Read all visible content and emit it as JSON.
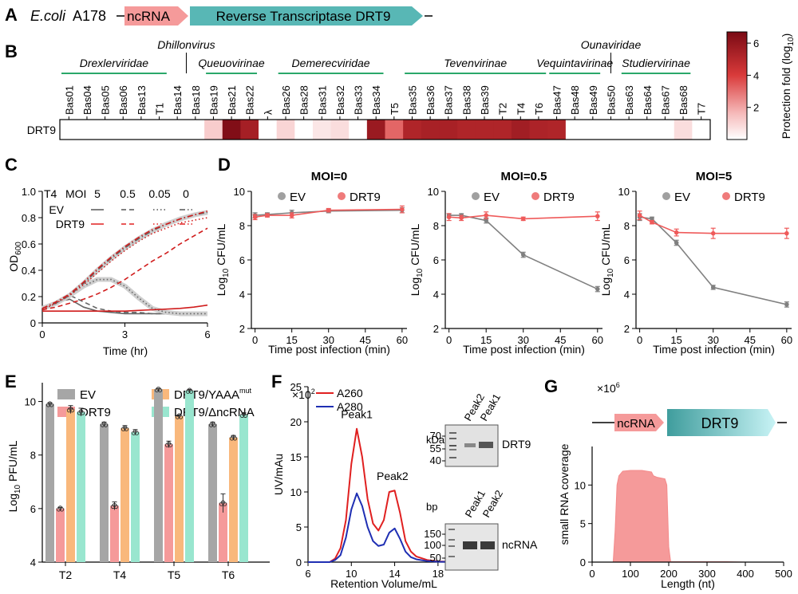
{
  "panels": {
    "a": "A",
    "b": "B",
    "c": "C",
    "d": "D",
    "e": "E",
    "f": "F",
    "g": "G"
  },
  "colors": {
    "ev": "#8c8c8c",
    "drt9": "#e05252",
    "drt9_light": "#ef7b7b",
    "pink": "#f59a9a",
    "orange": "#f9b87c",
    "mint": "#99e6cf",
    "teal": "#58b7b5",
    "green": "#2aa76a",
    "blue": "#1f2fb3",
    "red": "#e02020",
    "heat_dark": "#7a0a14"
  },
  "panel_a": {
    "organism": "E.coli",
    "strain": "A178",
    "ncrna": "ncRNA",
    "rt": "Reverse Transcriptase DRT9"
  },
  "chart_data": [
    {
      "id": "B",
      "type": "heatmap",
      "row_label": "DRT9",
      "colorbar_label": "Protection fold (log10)",
      "colorbar_ticks": [
        "6",
        "4",
        "2"
      ],
      "colorbar_range": [
        0,
        6.7
      ],
      "families": [
        {
          "name": "Drexlerviridae",
          "from": 0,
          "to": 5
        },
        {
          "name": "Dhillonvirus",
          "from": 6,
          "to": 7
        },
        {
          "name": "Queuovirinae",
          "from": 8,
          "to": 10
        },
        {
          "name": "Demerecviridae",
          "from": 12,
          "to": 17
        },
        {
          "name": "Tevenvirinae",
          "from": 19,
          "to": 26
        },
        {
          "name": "Vequintavirinae",
          "from": 27,
          "to": 29
        },
        {
          "name": "Ounaviridae",
          "from": 30,
          "to": 30
        },
        {
          "name": "Studiervirinae",
          "from": 31,
          "to": 34
        }
      ],
      "phages": [
        "Bas01",
        "Bas04",
        "Bas05",
        "Bas06",
        "Bas13",
        "T1",
        "Bas14",
        "Bas18",
        "Bas19",
        "Bas21",
        "Bas22",
        "λ",
        "Bas26",
        "Bas28",
        "Bas31",
        "Bas32",
        "Bas33",
        "Bas34",
        "T5",
        "Bas35",
        "Bas36",
        "Bas37",
        "Bas38",
        "Bas39",
        "T2",
        "T4",
        "T6",
        "Bas47",
        "Bas48",
        "Bas49",
        "Bas50",
        "Bas63",
        "Bas64",
        "Bas67",
        "Bas68",
        "T7"
      ],
      "values": [
        0,
        0,
        0,
        0,
        0,
        0,
        0,
        0,
        1.2,
        6.5,
        5.5,
        0,
        1.0,
        0,
        0.6,
        0.8,
        0,
        5.8,
        3.2,
        5.2,
        5.4,
        5.4,
        5.2,
        5.2,
        5.2,
        5.6,
        5.3,
        5.2,
        0,
        0,
        0,
        0,
        0,
        0,
        0.8,
        0
      ]
    },
    {
      "id": "C",
      "type": "line",
      "strain": "T4",
      "moi_label": "MOI",
      "mois": [
        "5",
        "0.5",
        "0.05",
        "0"
      ],
      "row_labels": [
        "EV",
        "DRT9"
      ],
      "xlabel": "Time (hr)",
      "ylabel_main": "OD",
      "ylabel_sub": "600",
      "xlim": [
        0,
        6
      ],
      "ylim": [
        0,
        1.0
      ],
      "xticks": [
        "0",
        "3",
        "6"
      ],
      "yticks": [
        "0",
        "0.2",
        "0.4",
        "0.6",
        "0.8",
        "1.0"
      ],
      "x": [
        0,
        0.5,
        1,
        1.5,
        2,
        2.5,
        3,
        3.5,
        4,
        4.5,
        5,
        5.5,
        6
      ],
      "series": [
        {
          "name": "EV MOI 5",
          "group": "EV",
          "dash": "solid",
          "values": [
            0.11,
            0.16,
            0.18,
            0.12,
            0.09,
            0.08,
            0.07,
            0.07,
            0.07,
            0.07,
            0.07,
            0.07,
            0.07
          ]
        },
        {
          "name": "EV MOI 0.5",
          "group": "EV",
          "dash": "dash",
          "values": [
            0.11,
            0.16,
            0.21,
            0.16,
            0.11,
            0.09,
            0.08,
            0.08,
            0.07,
            0.07,
            0.07,
            0.07,
            0.07
          ]
        },
        {
          "name": "EV MOI 0.05",
          "group": "EV",
          "dash": "dot",
          "values": [
            0.11,
            0.15,
            0.21,
            0.28,
            0.33,
            0.33,
            0.28,
            0.19,
            0.11,
            0.08,
            0.07,
            0.07,
            0.07
          ]
        },
        {
          "name": "EV MOI 0",
          "group": "EV",
          "dash": "dashdot",
          "values": [
            0.11,
            0.15,
            0.21,
            0.3,
            0.4,
            0.49,
            0.57,
            0.64,
            0.7,
            0.75,
            0.79,
            0.82,
            0.84
          ]
        },
        {
          "name": "DRT9 MOI 5",
          "group": "DRT9",
          "dash": "solid",
          "values": [
            0.09,
            0.09,
            0.09,
            0.09,
            0.09,
            0.09,
            0.09,
            0.095,
            0.1,
            0.105,
            0.11,
            0.12,
            0.135
          ]
        },
        {
          "name": "DRT9 MOI 0.5",
          "group": "DRT9",
          "dash": "dash",
          "values": [
            0.1,
            0.12,
            0.15,
            0.18,
            0.22,
            0.27,
            0.33,
            0.4,
            0.47,
            0.53,
            0.6,
            0.66,
            0.72
          ]
        },
        {
          "name": "DRT9 MOI 0.05",
          "group": "DRT9",
          "dash": "dot",
          "values": [
            0.1,
            0.15,
            0.21,
            0.29,
            0.38,
            0.47,
            0.55,
            0.62,
            0.68,
            0.72,
            0.76,
            0.78,
            0.8
          ]
        },
        {
          "name": "DRT9 MOI 0",
          "group": "DRT9",
          "dash": "dashdot",
          "values": [
            0.11,
            0.16,
            0.22,
            0.31,
            0.41,
            0.5,
            0.58,
            0.65,
            0.71,
            0.75,
            0.79,
            0.82,
            0.85
          ]
        }
      ]
    },
    {
      "id": "D1",
      "type": "line",
      "title": "MOI=0",
      "xlabel": "Time post infection (min)",
      "ylabel_main": "Log",
      "ylabel_sub": "10",
      "ylabel_rest": " CFU/mL",
      "xlim": [
        -1.5,
        62
      ],
      "ylim": [
        2,
        10
      ],
      "xticks": [
        "0",
        "15",
        "30",
        "45",
        "60"
      ],
      "yticks": [
        "2",
        "4",
        "6",
        "8",
        "10"
      ],
      "x": [
        0,
        5,
        15,
        30,
        60
      ],
      "legend": [
        "EV",
        "DRT9"
      ],
      "series": [
        {
          "name": "EV",
          "values": [
            8.6,
            8.65,
            8.75,
            8.85,
            8.9
          ],
          "err": [
            0.15,
            0.1,
            0.15,
            0.1,
            0.15
          ]
        },
        {
          "name": "DRT9",
          "values": [
            8.5,
            8.6,
            8.6,
            8.9,
            8.95
          ],
          "err": [
            0.15,
            0.1,
            0.15,
            0.1,
            0.2
          ]
        }
      ]
    },
    {
      "id": "D2",
      "type": "line",
      "title": "MOI=0.5",
      "xlabel": "Time post infection (min)",
      "ylabel_main": "Log",
      "ylabel_sub": "10",
      "ylabel_rest": " CFU/mL",
      "xlim": [
        -1.5,
        62
      ],
      "ylim": [
        2,
        10
      ],
      "xticks": [
        "0",
        "15",
        "30",
        "45",
        "60"
      ],
      "yticks": [
        "2",
        "4",
        "6",
        "8",
        "10"
      ],
      "x": [
        0,
        5,
        15,
        30,
        60
      ],
      "legend": [
        "EV",
        "DRT9"
      ],
      "series": [
        {
          "name": "EV",
          "values": [
            8.6,
            8.6,
            8.3,
            6.3,
            4.3
          ],
          "err": [
            0.1,
            0.1,
            0.15,
            0.15,
            0.15
          ]
        },
        {
          "name": "DRT9",
          "values": [
            8.5,
            8.45,
            8.6,
            8.4,
            8.55
          ],
          "err": [
            0.2,
            0.15,
            0.2,
            0.1,
            0.25
          ]
        }
      ]
    },
    {
      "id": "D3",
      "type": "line",
      "title": "MOI=5",
      "xlabel": "Time post infection (min)",
      "ylabel_main": "Log",
      "ylabel_sub": "10",
      "ylabel_rest": " CFU/mL",
      "xlim": [
        -1.5,
        62
      ],
      "ylim": [
        2,
        10
      ],
      "xticks": [
        "0",
        "15",
        "30",
        "45",
        "60"
      ],
      "yticks": [
        "2",
        "4",
        "6",
        "8",
        "10"
      ],
      "x": [
        0,
        5,
        15,
        30,
        60
      ],
      "legend": [
        "EV",
        "DRT9"
      ],
      "series": [
        {
          "name": "EV",
          "values": [
            8.5,
            8.4,
            7.0,
            4.4,
            3.4
          ],
          "err": [
            0.2,
            0.1,
            0.15,
            0.12,
            0.15
          ]
        },
        {
          "name": "DRT9",
          "values": [
            8.6,
            8.2,
            7.6,
            7.55,
            7.55
          ],
          "err": [
            0.25,
            0.1,
            0.2,
            0.3,
            0.3
          ]
        }
      ]
    },
    {
      "id": "E",
      "type": "bar",
      "ylabel_main": "Log",
      "ylabel_sub": "10",
      "ylabel_rest": " PFU/mL",
      "ylim": [
        4,
        11
      ],
      "yticks": [
        "4",
        "6",
        "8",
        "10"
      ],
      "categories": [
        "T2",
        "T4",
        "T5",
        "T6"
      ],
      "legend_extra": {
        "yaaa_sup": "mut"
      },
      "series": [
        {
          "name": "EV",
          "values": [
            9.9,
            9.15,
            10.45,
            9.15
          ],
          "err": [
            0.05,
            0.08,
            0.04,
            0.08
          ]
        },
        {
          "name": "DRT9",
          "values": [
            6.0,
            6.1,
            8.4,
            6.2
          ],
          "err": [
            0.05,
            0.15,
            0.12,
            0.35
          ]
        },
        {
          "name": "DRT9/YAAA",
          "values": [
            9.7,
            9.0,
            9.45,
            8.65
          ],
          "err": [
            0.15,
            0.1,
            0.05,
            0.08
          ]
        },
        {
          "name": "DRT9/ΔncRNA",
          "values": [
            9.6,
            8.85,
            10.4,
            9.5
          ],
          "err": [
            0.15,
            0.1,
            0.05,
            0.08
          ]
        }
      ]
    },
    {
      "id": "F",
      "type": "line",
      "multiplier": "×10",
      "multiplier_exp": "2",
      "ylabel": "UV/mAu",
      "xlabel": "Retention Volume/mL",
      "xlim": [
        6,
        20
      ],
      "ylim": [
        0,
        25
      ],
      "xticks": [
        "6",
        "10",
        "14",
        "18"
      ],
      "yticks": [
        "0",
        "5",
        "10",
        "15",
        "20",
        "25"
      ],
      "peak_labels": [
        "Peak1",
        "Peak2"
      ],
      "x": [
        6,
        7,
        8,
        8.5,
        9,
        9.5,
        10,
        10.5,
        11,
        11.5,
        12,
        12.5,
        13,
        13.5,
        14,
        14.5,
        15,
        15.5,
        16,
        17,
        18,
        20
      ],
      "series": [
        {
          "name": "A260",
          "values": [
            0,
            0,
            0,
            0.5,
            2,
            6,
            14,
            19,
            15,
            9,
            5.5,
            4.5,
            6,
            10,
            10.2,
            7,
            3,
            1.5,
            0.8,
            0.3,
            0.1,
            0
          ]
        },
        {
          "name": "A280",
          "values": [
            0,
            0,
            0,
            0.3,
            1,
            3.5,
            7.5,
            9.8,
            8,
            5,
            3,
            2.3,
            2.5,
            4.2,
            4.8,
            3.3,
            1.5,
            0.7,
            0.4,
            0.15,
            0.05,
            0
          ]
        }
      ],
      "gel_protein": {
        "unit": "kDa",
        "markers": [
          "70",
          "55",
          "40"
        ],
        "lanes": [
          "Peak2",
          "Peak1"
        ],
        "band": "DRT9"
      },
      "gel_rna": {
        "unit": "bp",
        "markers": [
          "150",
          "100",
          "50"
        ],
        "lanes": [
          "Peak1",
          "Peak2"
        ],
        "band": "ncRNA"
      }
    },
    {
      "id": "G",
      "type": "area",
      "multiplier": "×10",
      "multiplier_exp": "6",
      "ylabel": "small RNA coverage",
      "xlabel": "Length (nt)",
      "xlim": [
        0,
        500
      ],
      "ylim": [
        0,
        15
      ],
      "xticks": [
        "0",
        "100",
        "200",
        "300",
        "400",
        "500"
      ],
      "yticks": [
        "0",
        "5",
        "10"
      ],
      "gene_labels": [
        "ncRNA",
        "DRT9"
      ],
      "x": [
        55,
        60,
        65,
        70,
        80,
        100,
        130,
        155,
        160,
        170,
        180,
        190,
        195,
        200,
        205,
        300,
        350,
        400
      ],
      "values": [
        0,
        4,
        10,
        11.2,
        11.8,
        11.9,
        11.9,
        11.7,
        11.2,
        11.0,
        10.9,
        10.8,
        10.0,
        2,
        0.05,
        0.05,
        0.05,
        0
      ]
    }
  ]
}
